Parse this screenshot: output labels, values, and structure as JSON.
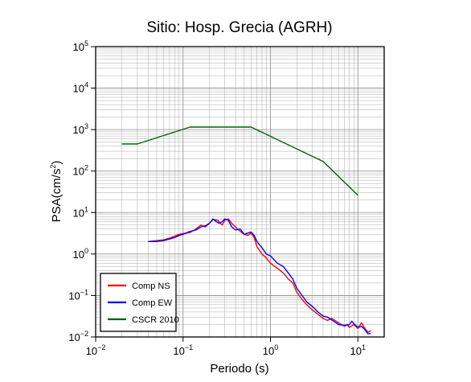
{
  "chart_data": {
    "type": "line",
    "title": "Sitio: Hosp. Grecia (AGRH)",
    "xlabel": "Periodo (s)",
    "ylabel": {
      "base": "PSA(cm/s",
      "sup": "2",
      "tail": ")"
    },
    "xscale": "log",
    "yscale": "log",
    "xlim": [
      0.01,
      20
    ],
    "ylim": [
      0.01,
      100000
    ],
    "grid": true,
    "legend_position": "bottom-left",
    "x_ticks": [
      {
        "value": 0.01,
        "base": "10",
        "exp": "−2"
      },
      {
        "value": 0.1,
        "base": "10",
        "exp": "−1"
      },
      {
        "value": 1,
        "base": "10",
        "exp": "0"
      },
      {
        "value": 10,
        "base": "10",
        "exp": "1"
      }
    ],
    "y_ticks": [
      {
        "value": 0.01,
        "base": "10",
        "exp": "−2"
      },
      {
        "value": 0.1,
        "base": "10",
        "exp": "−1"
      },
      {
        "value": 1,
        "base": "10",
        "exp": "0"
      },
      {
        "value": 10,
        "base": "10",
        "exp": "1"
      },
      {
        "value": 100,
        "base": "10",
        "exp": "2"
      },
      {
        "value": 1000,
        "base": "10",
        "exp": "3"
      },
      {
        "value": 10000,
        "base": "10",
        "exp": "4"
      },
      {
        "value": 100000,
        "base": "10",
        "exp": "5"
      }
    ],
    "series": [
      {
        "name": "Comp NS",
        "color": "#ff0000",
        "points": [
          [
            0.04,
            2.0
          ],
          [
            0.05,
            2.1
          ],
          [
            0.06,
            2.2
          ],
          [
            0.07,
            2.4
          ],
          [
            0.08,
            2.7
          ],
          [
            0.09,
            3.0
          ],
          [
            0.1,
            3.1
          ],
          [
            0.12,
            3.3
          ],
          [
            0.14,
            4.0
          ],
          [
            0.16,
            5.0
          ],
          [
            0.18,
            4.5
          ],
          [
            0.2,
            5.5
          ],
          [
            0.22,
            6.8
          ],
          [
            0.25,
            6.5
          ],
          [
            0.28,
            5.0
          ],
          [
            0.3,
            6.5
          ],
          [
            0.33,
            7.0
          ],
          [
            0.36,
            5.5
          ],
          [
            0.4,
            4.5
          ],
          [
            0.45,
            3.5
          ],
          [
            0.5,
            3.0
          ],
          [
            0.55,
            2.8
          ],
          [
            0.6,
            3.2
          ],
          [
            0.65,
            2.5
          ],
          [
            0.7,
            1.5
          ],
          [
            0.8,
            1.0
          ],
          [
            0.9,
            0.8
          ],
          [
            1.0,
            0.6
          ],
          [
            1.2,
            0.45
          ],
          [
            1.4,
            0.35
          ],
          [
            1.6,
            0.25
          ],
          [
            1.8,
            0.2
          ],
          [
            2.0,
            0.12
          ],
          [
            2.3,
            0.08
          ],
          [
            2.6,
            0.06
          ],
          [
            3.0,
            0.045
          ],
          [
            3.5,
            0.035
          ],
          [
            4.0,
            0.028
          ],
          [
            4.5,
            0.025
          ],
          [
            5.0,
            0.028
          ],
          [
            6.0,
            0.022
          ],
          [
            7.0,
            0.018
          ],
          [
            7.5,
            0.02
          ],
          [
            8.0,
            0.017
          ],
          [
            9.0,
            0.02
          ],
          [
            10.0,
            0.016
          ],
          [
            11.0,
            0.022
          ],
          [
            12.0,
            0.016
          ],
          [
            13.0,
            0.013
          ],
          [
            14.0,
            0.014
          ]
        ]
      },
      {
        "name": "Comp EW",
        "color": "#0000ff",
        "points": [
          [
            0.04,
            2.0
          ],
          [
            0.05,
            2.0
          ],
          [
            0.06,
            2.1
          ],
          [
            0.07,
            2.3
          ],
          [
            0.08,
            2.5
          ],
          [
            0.09,
            2.8
          ],
          [
            0.1,
            3.0
          ],
          [
            0.12,
            3.5
          ],
          [
            0.14,
            3.8
          ],
          [
            0.16,
            4.5
          ],
          [
            0.18,
            4.8
          ],
          [
            0.2,
            5.5
          ],
          [
            0.22,
            7.0
          ],
          [
            0.24,
            6.0
          ],
          [
            0.26,
            5.5
          ],
          [
            0.28,
            6.0
          ],
          [
            0.3,
            7.0
          ],
          [
            0.33,
            6.5
          ],
          [
            0.36,
            4.5
          ],
          [
            0.4,
            3.8
          ],
          [
            0.45,
            4.0
          ],
          [
            0.5,
            3.0
          ],
          [
            0.55,
            3.2
          ],
          [
            0.6,
            3.4
          ],
          [
            0.65,
            2.8
          ],
          [
            0.7,
            2.0
          ],
          [
            0.8,
            1.4
          ],
          [
            0.9,
            1.0
          ],
          [
            1.0,
            0.9
          ],
          [
            1.2,
            0.6
          ],
          [
            1.4,
            0.5
          ],
          [
            1.6,
            0.35
          ],
          [
            1.8,
            0.25
          ],
          [
            2.0,
            0.15
          ],
          [
            2.3,
            0.1
          ],
          [
            2.6,
            0.07
          ],
          [
            3.0,
            0.055
          ],
          [
            3.5,
            0.04
          ],
          [
            4.0,
            0.032
          ],
          [
            4.5,
            0.03
          ],
          [
            5.0,
            0.026
          ],
          [
            6.0,
            0.02
          ],
          [
            7.0,
            0.019
          ],
          [
            8.0,
            0.02
          ],
          [
            8.5,
            0.024
          ],
          [
            9.0,
            0.021
          ],
          [
            10.0,
            0.017
          ],
          [
            11.0,
            0.018
          ],
          [
            12.0,
            0.015
          ],
          [
            13.0,
            0.012
          ],
          [
            14.0,
            0.012
          ]
        ]
      },
      {
        "name": "CSCR 2010",
        "color": "#006400",
        "points": [
          [
            0.02,
            450
          ],
          [
            0.03,
            450
          ],
          [
            0.12,
            1150
          ],
          [
            0.6,
            1150
          ],
          [
            4.0,
            170
          ],
          [
            10.0,
            26
          ]
        ]
      }
    ]
  }
}
